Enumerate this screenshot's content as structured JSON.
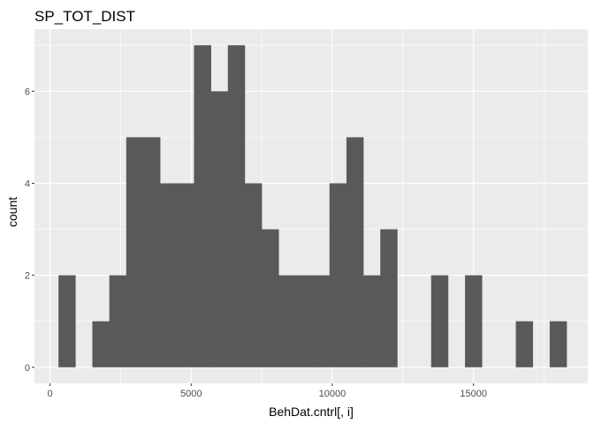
{
  "chart_data": {
    "type": "bar",
    "title": "SP_TOT_DIST",
    "xlabel": "BehDat.cntrl[, i]",
    "ylabel": "count",
    "x_ticks": [
      0,
      5000,
      10000,
      15000
    ],
    "x_tick_labels": [
      "0",
      "5000",
      "10000",
      "15000"
    ],
    "y_ticks": [
      0,
      2,
      4,
      6
    ],
    "y_tick_labels": [
      "0",
      "2",
      "4",
      "6"
    ],
    "xlim": [
      -550,
      19050
    ],
    "ylim": [
      -0.35,
      7.35
    ],
    "bin_width": 600,
    "bin_start": 300,
    "values": [
      2,
      0,
      1,
      2,
      5,
      5,
      4,
      4,
      7,
      6,
      7,
      4,
      3,
      2,
      2,
      2,
      4,
      5,
      2,
      3,
      0,
      0,
      2,
      0,
      2,
      0,
      0,
      1,
      0,
      1
    ],
    "bar_color": "#595959",
    "panel_color": "#ebebeb",
    "grid": true,
    "grid_color": "#ffffff"
  }
}
